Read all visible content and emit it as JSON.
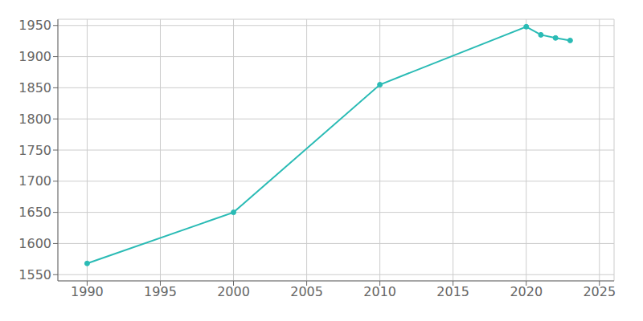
{
  "chart_data": {
    "type": "line",
    "x": [
      1990,
      2000,
      2010,
      2020,
      2021,
      2022,
      2023
    ],
    "values": [
      1568,
      1650,
      1855,
      1948,
      1935,
      1930,
      1926
    ],
    "color": "#2abbb5",
    "marker": "o",
    "xlim": [
      1988,
      2026
    ],
    "ylim": [
      1540,
      1960
    ],
    "xticks": [
      1990,
      1995,
      2000,
      2005,
      2010,
      2015,
      2020,
      2025
    ],
    "yticks": [
      1550,
      1600,
      1650,
      1700,
      1750,
      1800,
      1850,
      1900,
      1950
    ],
    "grid": true
  }
}
